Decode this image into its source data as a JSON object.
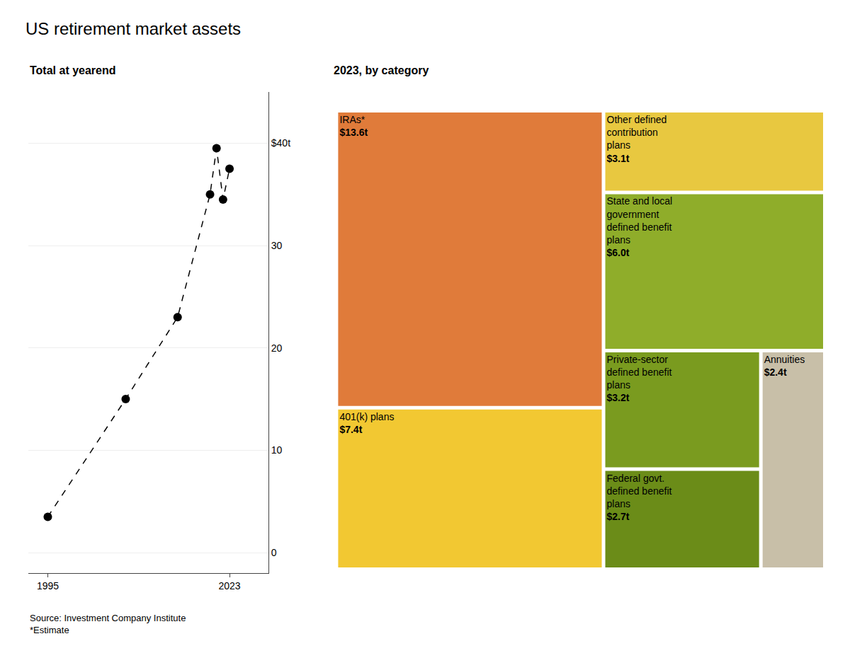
{
  "chart_data": [
    {
      "type": "line",
      "title": "US retirement market assets",
      "subtitle": "Total at yearend",
      "annotations": [
        "Source: Investment Company Institute\n*Estimate"
      ],
      "x": [
        1995,
        2007,
        2015,
        2020,
        2021,
        2022,
        2023
      ],
      "values": [
        3.5,
        15.0,
        23.0,
        35.0,
        39.5,
        34.5,
        37.5
      ],
      "color": "#000000",
      "line_style": "dashed",
      "marker": "circle",
      "xlim": [
        1992,
        2029
      ],
      "xticks": [
        1995,
        2023
      ],
      "ylim": [
        -2,
        45
      ],
      "yticks": [
        0,
        10,
        20,
        30,
        {
          "value": 40,
          "label": "$40t"
        }
      ],
      "grid": true
    },
    {
      "type": "treemap",
      "subtitle": "2023, by category",
      "categories": [
        "IRAs*",
        "401(k) plans",
        "Other defined contribution plans",
        "State and local government defined benefit plans",
        "Private-sector defined benefit plans",
        "Federal govt. defined benefit plans",
        "Annuities"
      ],
      "values": [
        13.6,
        7.4,
        3.1,
        6.0,
        3.2,
        2.7,
        2.4
      ],
      "value_labels": [
        "$13.6t",
        "$7.4t",
        "$3.1t",
        "$6.0t",
        "$3.2t",
        "$2.7t",
        "$2.4t"
      ],
      "colors": [
        "#E07B3A",
        "#F2C832",
        "#E8C840",
        "#8FAD2A",
        "#7A9B1F",
        "#6B8C18",
        "#C8BFA8"
      ],
      "data_labels": true
    }
  ]
}
